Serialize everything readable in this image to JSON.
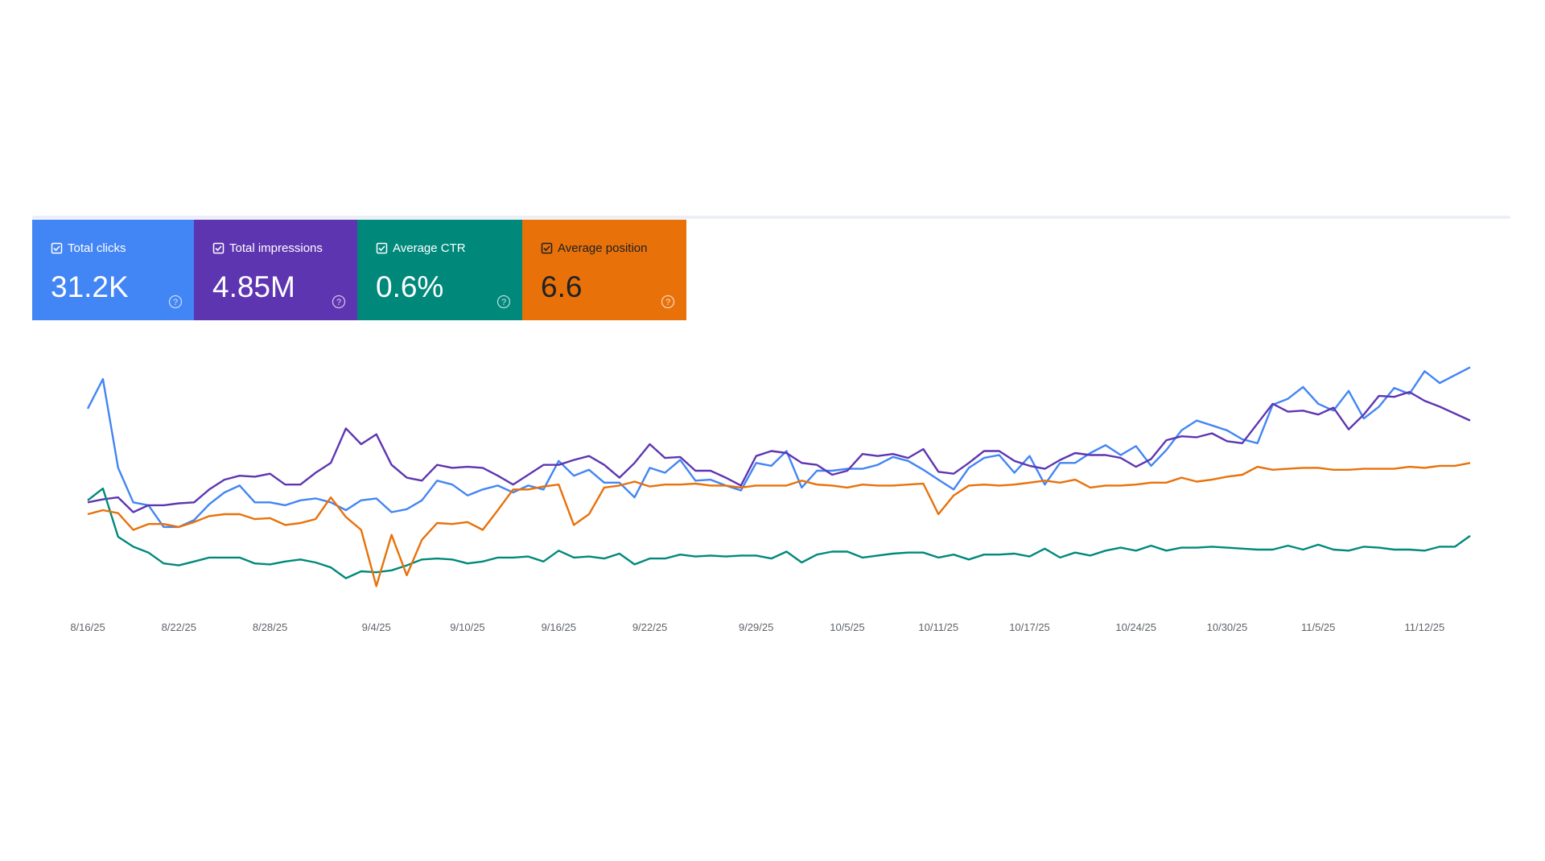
{
  "chart_data": {
    "type": "line",
    "categories": [
      "8/16/25",
      null,
      null,
      null,
      null,
      null,
      "8/22/25",
      null,
      null,
      null,
      null,
      null,
      "8/28/25",
      null,
      null,
      null,
      null,
      null,
      null,
      "9/4/25",
      null,
      null,
      null,
      null,
      null,
      "9/10/25",
      null,
      null,
      null,
      null,
      null,
      "9/16/25",
      null,
      null,
      null,
      null,
      null,
      "9/22/25",
      null,
      null,
      null,
      null,
      null,
      null,
      "9/29/25",
      null,
      null,
      null,
      null,
      null,
      "10/5/25",
      null,
      null,
      null,
      null,
      null,
      "10/11/25",
      null,
      null,
      null,
      null,
      null,
      "10/17/25",
      null,
      null,
      null,
      null,
      null,
      null,
      "10/24/25",
      null,
      null,
      null,
      null,
      null,
      "10/30/25",
      null,
      null,
      null,
      null,
      null,
      "11/5/25",
      null,
      null,
      null,
      null,
      null,
      null,
      "11/12/25",
      null,
      null,
      null
    ],
    "ylim": [
      0,
      280
    ],
    "series": [
      {
        "name": "Total clicks",
        "summary": "31.2K",
        "color": "#4285f4",
        "values": [
          205,
          235,
          145,
          110,
          107,
          85,
          85,
          92,
          108,
          120,
          127,
          110,
          110,
          107,
          112,
          114,
          110,
          102,
          112,
          114,
          100,
          103,
          112,
          132,
          128,
          117,
          123,
          127,
          120,
          127,
          123,
          152,
          137,
          143,
          130,
          130,
          115,
          145,
          140,
          153,
          132,
          133,
          127,
          122,
          150,
          147,
          162,
          125,
          142,
          142,
          144,
          144,
          148,
          156,
          152,
          143,
          133,
          123,
          145,
          155,
          158,
          140,
          157,
          128,
          150,
          150,
          160,
          168,
          158,
          167,
          147,
          163,
          183,
          193,
          188,
          183,
          174,
          170,
          209,
          215,
          227,
          210,
          203,
          223,
          195,
          207,
          226,
          220,
          243,
          231,
          239,
          247
        ]
      },
      {
        "name": "Total impressions",
        "summary": "4.85M",
        "color": "#5e35b1",
        "values": [
          110,
          113,
          115,
          100,
          107,
          107,
          109,
          110,
          123,
          133,
          137,
          136,
          139,
          128,
          128,
          140,
          150,
          185,
          169,
          179,
          148,
          135,
          132,
          148,
          145,
          146,
          145,
          137,
          128,
          138,
          148,
          148,
          153,
          157,
          148,
          135,
          150,
          169,
          155,
          156,
          142,
          142,
          135,
          127,
          157,
          162,
          160,
          150,
          148,
          138,
          142,
          159,
          157,
          159,
          155,
          164,
          141,
          139,
          150,
          162,
          162,
          152,
          147,
          144,
          153,
          160,
          158,
          158,
          155,
          146,
          154,
          173,
          177,
          176,
          180,
          172,
          170,
          190,
          210,
          202,
          203,
          199,
          206,
          184,
          199,
          218,
          217,
          222,
          213,
          207,
          200,
          193
        ]
      },
      {
        "name": "Average CTR",
        "summary": "0.6%",
        "color": "#00897b",
        "values": [
          112,
          124,
          75,
          65,
          59,
          48,
          46,
          50,
          54,
          54,
          54,
          48,
          47,
          50,
          52,
          49,
          44,
          33,
          40,
          39,
          41,
          46,
          52,
          53,
          52,
          48,
          50,
          54,
          54,
          55,
          50,
          61,
          54,
          55,
          53,
          58,
          47,
          53,
          53,
          57,
          55,
          56,
          55,
          56,
          56,
          53,
          60,
          49,
          57,
          60,
          60,
          54,
          56,
          58,
          59,
          59,
          54,
          57,
          52,
          57,
          57,
          58,
          55,
          63,
          54,
          59,
          56,
          61,
          64,
          61,
          66,
          61,
          64,
          64,
          65,
          64,
          63,
          62,
          62,
          66,
          62,
          67,
          62,
          61,
          65,
          64,
          62,
          62,
          61,
          65,
          65,
          76
        ]
      },
      {
        "name": "Average position",
        "summary": "6.6",
        "color": "#e8710a",
        "values": [
          98,
          102,
          99,
          82,
          88,
          88,
          85,
          90,
          96,
          98,
          98,
          93,
          94,
          87,
          89,
          93,
          115,
          95,
          82,
          25,
          77,
          36,
          72,
          89,
          88,
          90,
          82,
          102,
          123,
          123,
          126,
          128,
          87,
          98,
          125,
          127,
          131,
          126,
          128,
          128,
          129,
          127,
          127,
          125,
          127,
          127,
          127,
          132,
          128,
          127,
          125,
          128,
          127,
          127,
          128,
          129,
          98,
          117,
          127,
          128,
          127,
          128,
          130,
          132,
          130,
          133,
          125,
          127,
          127,
          128,
          130,
          130,
          135,
          131,
          133,
          136,
          138,
          146,
          143,
          144,
          145,
          145,
          143,
          143,
          144,
          144,
          144,
          146,
          145,
          147,
          147,
          150
        ]
      }
    ]
  }
}
